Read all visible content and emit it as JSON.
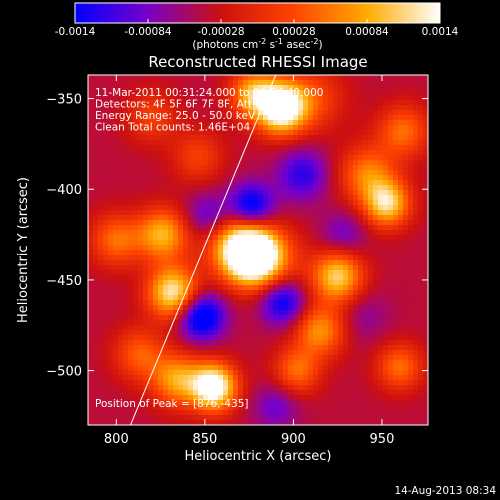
{
  "chart_data": {
    "type": "heatmap",
    "title": "Reconstructed RHESSI Image",
    "xlabel": "Heliocentric X (arcsec)",
    "ylabel": "Heliocentric Y (arcsec)",
    "xlim": [
      784,
      976
    ],
    "ylim": [
      -530,
      -337
    ],
    "xticks": [
      800,
      850,
      900,
      950
    ],
    "yticks": [
      -350,
      -400,
      -450,
      -500
    ],
    "colorbar": {
      "range": [
        -0.0014,
        0.0014
      ],
      "ticks": [
        "-0.0014",
        "-0.00084",
        "-0.00028",
        "0.00028",
        "0.00084",
        "0.0014"
      ],
      "tick_values": [
        -0.0014,
        -0.00084,
        -0.00028,
        0.00028,
        0.00084,
        0.0014
      ],
      "unit_text": "(photons cm",
      "unit_sup1": "-2",
      "unit_mid1": " s",
      "unit_sup2": "-1",
      "unit_mid2": " asec",
      "unit_sup3": "-2",
      "unit_end": ")",
      "colors": [
        "#0000ff",
        "#7a00c8",
        "#cc1010",
        "#ff4400",
        "#ffaa00",
        "#ffffff"
      ]
    },
    "annotations": [
      "11-Mar-2011 00:31:24.000 to 00:54:40.000",
      "Detectors: 4F 5F 6F 7F 8F, Att 0",
      "Energy Range: 25.0 - 50.0 keV",
      "Clean     Total counts: 1.46E+04"
    ],
    "peak_text": "Position of Peak = [876,-435]",
    "peak": [
      876,
      -435
    ],
    "limb_line": [
      [
        808,
        -530
      ],
      [
        890,
        -337
      ]
    ],
    "background_value": -0.0004,
    "sources": [
      {
        "x": 876,
        "y": -436,
        "value": 0.00245,
        "sigma": 11
      },
      {
        "x": 866,
        "y": -428,
        "value": 0.0008,
        "sigma": 13
      },
      {
        "x": 888,
        "y": -440,
        "value": 0.0006,
        "sigma": 13
      },
      {
        "x": 893,
        "y": -355,
        "value": 0.0022,
        "sigma": 10
      },
      {
        "x": 877,
        "y": -347,
        "value": 0.0012,
        "sigma": 9
      },
      {
        "x": 912,
        "y": -350,
        "value": 0.0006,
        "sigma": 12
      },
      {
        "x": 855,
        "y": -509,
        "value": 0.0021,
        "sigma": 9
      },
      {
        "x": 834,
        "y": -505,
        "value": 0.0012,
        "sigma": 10
      },
      {
        "x": 832,
        "y": -457,
        "value": 0.0017,
        "sigma": 10
      },
      {
        "x": 826,
        "y": -425,
        "value": 0.0013,
        "sigma": 10
      },
      {
        "x": 800,
        "y": -428,
        "value": 0.0009,
        "sigma": 10
      },
      {
        "x": 813,
        "y": -491,
        "value": 0.0008,
        "sigma": 10
      },
      {
        "x": 953,
        "y": -408,
        "value": 0.0015,
        "sigma": 9
      },
      {
        "x": 942,
        "y": -392,
        "value": 0.001,
        "sigma": 11
      },
      {
        "x": 925,
        "y": -448,
        "value": 0.0015,
        "sigma": 10
      },
      {
        "x": 915,
        "y": -478,
        "value": 0.0011,
        "sigma": 10
      },
      {
        "x": 902,
        "y": -500,
        "value": 0.0009,
        "sigma": 9
      },
      {
        "x": 962,
        "y": -368,
        "value": 0.0009,
        "sigma": 10
      },
      {
        "x": 960,
        "y": -498,
        "value": 0.0009,
        "sigma": 9
      },
      {
        "x": 820,
        "y": -360,
        "value": 0.0006,
        "sigma": 10
      },
      {
        "x": 846,
        "y": -382,
        "value": 0.0006,
        "sigma": 10
      },
      {
        "x": 876,
        "y": -410,
        "value": -0.0013,
        "sigma": 9
      },
      {
        "x": 848,
        "y": -470,
        "value": -0.0014,
        "sigma": 9
      },
      {
        "x": 894,
        "y": -462,
        "value": -0.0011,
        "sigma": 9
      },
      {
        "x": 905,
        "y": -392,
        "value": -0.0008,
        "sigma": 10
      },
      {
        "x": 852,
        "y": -415,
        "value": -0.0007,
        "sigma": 9
      },
      {
        "x": 928,
        "y": -425,
        "value": -0.0005,
        "sigma": 9
      },
      {
        "x": 890,
        "y": -520,
        "value": -0.0005,
        "sigma": 9
      },
      {
        "x": 940,
        "y": -470,
        "value": -0.0003,
        "sigma": 10
      }
    ]
  },
  "footer": {
    "timestamp": "14-Aug-2013 08:34"
  }
}
